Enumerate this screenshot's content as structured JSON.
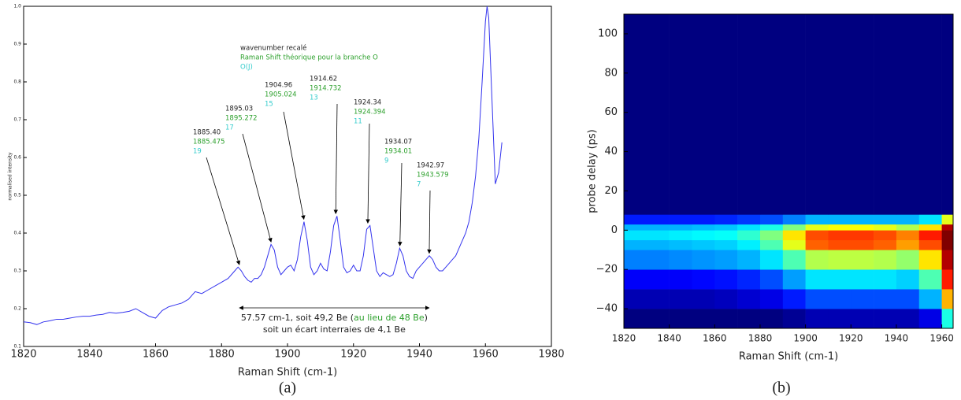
{
  "chart_data": [
    {
      "type": "line",
      "x_label": "Raman Shift (cm-1)",
      "y_label": "normalised intensity",
      "caption": "(a)",
      "xlim": [
        1820,
        1980
      ],
      "xticks": [
        1820,
        1840,
        1860,
        1880,
        1900,
        1920,
        1940,
        1960,
        1980
      ],
      "ylim": [
        0.1,
        1.0
      ],
      "yticks": [
        0.1,
        0.2,
        0.3,
        0.4,
        0.5,
        0.6,
        0.7,
        0.8,
        0.9,
        {
          "value": 1,
          "label": "1.0"
        }
      ],
      "x": [
        1820,
        1822,
        1824,
        1826,
        1828,
        1830,
        1832,
        1834,
        1836,
        1838,
        1840,
        1842,
        1844,
        1846,
        1848,
        1850,
        1852,
        1854,
        1856,
        1858,
        1860,
        1862,
        1864,
        1866,
        1868,
        1870,
        1872,
        1874,
        1876,
        1878,
        1880,
        1882,
        1884,
        1885,
        1886,
        1887,
        1888,
        1889,
        1890,
        1891,
        1892,
        1893,
        1894,
        1895,
        1896,
        1897,
        1898,
        1899,
        1900,
        1901,
        1902,
        1903,
        1904,
        1905,
        1906,
        1907,
        1908,
        1909,
        1910,
        1911,
        1912,
        1913,
        1914,
        1915,
        1916,
        1917,
        1918,
        1919,
        1920,
        1921,
        1922,
        1923,
        1924,
        1925,
        1926,
        1927,
        1928,
        1929,
        1930,
        1931,
        1932,
        1933,
        1934,
        1935,
        1936,
        1937,
        1938,
        1939,
        1940,
        1941,
        1942,
        1943,
        1944,
        1945,
        1946,
        1947,
        1948,
        1949,
        1950,
        1951,
        1952,
        1953,
        1954,
        1955,
        1956,
        1957,
        1958,
        1959,
        1960,
        1960.5,
        1961,
        1962,
        1963,
        1964,
        1965
      ],
      "series": [
        {
          "color": "#3333ee",
          "values": [
            0.165,
            0.163,
            0.158,
            0.165,
            0.168,
            0.172,
            0.172,
            0.175,
            0.178,
            0.18,
            0.18,
            0.183,
            0.185,
            0.19,
            0.188,
            0.19,
            0.193,
            0.2,
            0.19,
            0.18,
            0.175,
            0.195,
            0.205,
            0.21,
            0.215,
            0.225,
            0.245,
            0.24,
            0.25,
            0.26,
            0.27,
            0.28,
            0.3,
            0.31,
            0.3,
            0.285,
            0.275,
            0.27,
            0.28,
            0.28,
            0.29,
            0.31,
            0.34,
            0.37,
            0.355,
            0.31,
            0.29,
            0.3,
            0.31,
            0.315,
            0.3,
            0.33,
            0.39,
            0.43,
            0.38,
            0.31,
            0.29,
            0.3,
            0.32,
            0.305,
            0.3,
            0.35,
            0.42,
            0.445,
            0.38,
            0.31,
            0.295,
            0.3,
            0.315,
            0.3,
            0.3,
            0.34,
            0.41,
            0.42,
            0.36,
            0.3,
            0.285,
            0.295,
            0.29,
            0.285,
            0.29,
            0.32,
            0.36,
            0.34,
            0.3,
            0.285,
            0.28,
            0.3,
            0.31,
            0.32,
            0.33,
            0.34,
            0.33,
            0.31,
            0.3,
            0.3,
            0.31,
            0.32,
            0.33,
            0.34,
            0.36,
            0.38,
            0.4,
            0.43,
            0.48,
            0.55,
            0.65,
            0.8,
            0.96,
            1.0,
            0.97,
            0.75,
            0.53,
            0.56,
            0.64
          ]
        }
      ],
      "label_colors": [
        "#222222",
        "#2ca02c",
        "#33cccc"
      ],
      "legend": [
        "wavenumber recalé",
        "Raman Shift théorique pour la branche O",
        "O(J)"
      ],
      "annotations": [
        {
          "labels": [
            "1885.40",
            "1885.475",
            "19"
          ],
          "x": 1885.4,
          "y": 0.31
        },
        {
          "labels": [
            "1895.03",
            "1895.272",
            "17"
          ],
          "x": 1895.03,
          "y": 0.37
        },
        {
          "labels": [
            "1904.96",
            "1905.024",
            "15"
          ],
          "x": 1904.96,
          "y": 0.43
        },
        {
          "labels": [
            "1914.62",
            "1914.732",
            "13"
          ],
          "x": 1914.62,
          "y": 0.445
        },
        {
          "labels": [
            "1924.34",
            "1924.394",
            "11"
          ],
          "x": 1924.34,
          "y": 0.42
        },
        {
          "labels": [
            "1934.07",
            "1934.01",
            "9"
          ],
          "x": 1934.07,
          "y": 0.36
        },
        {
          "labels": [
            "1942.97",
            "1943.579",
            "7"
          ],
          "x": 1942.97,
          "y": 0.34
        }
      ],
      "span_note": [
        "57.57 cm-1, soit 49,2 Be (",
        "au lieu de 48 Be",
        ")",
        "soit un écart interraies de 4,1 Be"
      ]
    },
    {
      "type": "heatmap",
      "x_label": "Raman Shift (cm-1)",
      "y_label": "probe delay (ps)",
      "caption": "(b)",
      "colormap": "jet",
      "xlim": [
        1820,
        1965
      ],
      "xticks": [
        1820,
        1840,
        1860,
        1880,
        1900,
        1920,
        1940,
        1960
      ],
      "ylim": [
        -50,
        110
      ],
      "yticks": [
        {
          "value": -40,
          "label": "−40"
        },
        {
          "value": -20,
          "label": "−20"
        },
        0,
        20,
        40,
        60,
        80,
        100
      ],
      "x_edges": [
        1820,
        1830,
        1840,
        1850,
        1860,
        1870,
        1880,
        1890,
        1900,
        1910,
        1920,
        1930,
        1940,
        1950,
        1960,
        1965
      ],
      "y_edges": [
        -50,
        -40,
        -30,
        -20,
        -10,
        -5,
        0,
        3,
        8,
        110
      ],
      "z": [
        [
          0,
          0,
          0,
          0,
          0,
          0,
          0,
          0.02,
          0.05,
          0.05,
          0.05,
          0.05,
          0.05,
          0.1,
          0.4
        ],
        [
          0.05,
          0.05,
          0.05,
          0.05,
          0.06,
          0.08,
          0.1,
          0.15,
          0.2,
          0.2,
          0.2,
          0.2,
          0.2,
          0.3,
          0.7
        ],
        [
          0.12,
          0.12,
          0.12,
          0.13,
          0.14,
          0.16,
          0.2,
          0.28,
          0.35,
          0.35,
          0.35,
          0.35,
          0.33,
          0.45,
          0.85
        ],
        [
          0.25,
          0.25,
          0.26,
          0.27,
          0.28,
          0.3,
          0.35,
          0.45,
          0.55,
          0.56,
          0.56,
          0.55,
          0.52,
          0.65,
          0.95
        ],
        [
          0.3,
          0.3,
          0.31,
          0.32,
          0.33,
          0.36,
          0.45,
          0.6,
          0.78,
          0.8,
          0.8,
          0.78,
          0.72,
          0.8,
          1.0
        ],
        [
          0.35,
          0.35,
          0.36,
          0.37,
          0.38,
          0.42,
          0.5,
          0.65,
          0.8,
          0.82,
          0.82,
          0.8,
          0.75,
          0.85,
          1.0
        ],
        [
          0.3,
          0.3,
          0.3,
          0.31,
          0.32,
          0.35,
          0.4,
          0.5,
          0.6,
          0.62,
          0.62,
          0.6,
          0.55,
          0.65,
          0.95
        ],
        [
          0.15,
          0.15,
          0.15,
          0.15,
          0.16,
          0.18,
          0.2,
          0.25,
          0.3,
          0.3,
          0.3,
          0.3,
          0.3,
          0.35,
          0.6
        ],
        [
          0,
          0,
          0,
          0,
          0,
          0,
          0,
          0,
          0,
          0,
          0,
          0,
          0,
          0,
          0
        ]
      ]
    }
  ]
}
